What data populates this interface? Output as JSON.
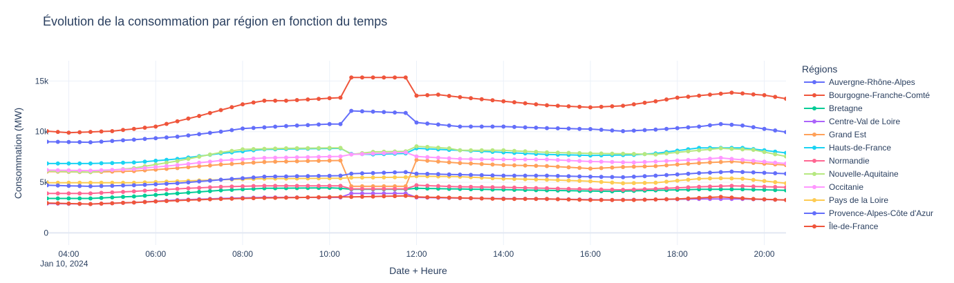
{
  "chart_data": {
    "type": "line",
    "title": "Évolution de la consommation par région en fonction du temps",
    "xlabel": "Date + Heure",
    "ylabel": "Consommation (MW)",
    "legend_title": "Régions",
    "legend_position": "right",
    "date_label": "Jan 10, 2024",
    "x_start": "03:30",
    "x_step_minutes": 15,
    "x_range": [
      "03:30",
      "20:30"
    ],
    "x_ticks": [
      "04:00",
      "06:00",
      "08:00",
      "10:00",
      "12:00",
      "14:00",
      "16:00",
      "18:00",
      "20:00"
    ],
    "ylim": [
      -1200,
      17000
    ],
    "y_ticks": [
      0,
      5000,
      10000,
      15000
    ],
    "y_tick_labels": [
      "0",
      "5k",
      "10k",
      "15k"
    ],
    "series": [
      {
        "name": "Auvergne-Rhône-Alpes",
        "color": "#636efa",
        "points": [
          [
            "03:30",
            9000
          ],
          [
            "04:30",
            8950
          ],
          [
            "05:30",
            9200
          ],
          [
            "06:30",
            9500
          ],
          [
            "07:30",
            10000
          ],
          [
            "08:00",
            10300
          ],
          [
            "09:00",
            10550
          ],
          [
            "10:00",
            10750
          ],
          [
            "10:15",
            10750
          ],
          [
            "10:30",
            12050
          ],
          [
            "11:45",
            11850
          ],
          [
            "12:00",
            10900
          ],
          [
            "13:00",
            10500
          ],
          [
            "14:00",
            10500
          ],
          [
            "15:00",
            10350
          ],
          [
            "16:00",
            10250
          ],
          [
            "16:45",
            10050
          ],
          [
            "17:30",
            10200
          ],
          [
            "18:30",
            10500
          ],
          [
            "19:00",
            10750
          ],
          [
            "19:30",
            10600
          ],
          [
            "20:30",
            9950
          ]
        ]
      },
      {
        "name": "Bourgogne-Franche-Comté",
        "color": "#ef553b",
        "points": [
          [
            "03:30",
            10050
          ],
          [
            "04:00",
            9900
          ],
          [
            "05:00",
            10050
          ],
          [
            "06:00",
            10500
          ],
          [
            "07:00",
            11550
          ],
          [
            "08:00",
            12700
          ],
          [
            "08:30",
            13050
          ],
          [
            "09:00",
            13050
          ],
          [
            "10:00",
            13300
          ],
          [
            "10:15",
            13350
          ],
          [
            "10:30",
            15350
          ],
          [
            "11:45",
            15350
          ],
          [
            "12:00",
            13550
          ],
          [
            "12:30",
            13650
          ],
          [
            "13:00",
            13400
          ],
          [
            "14:00",
            13000
          ],
          [
            "15:00",
            12600
          ],
          [
            "16:00",
            12400
          ],
          [
            "16:45",
            12550
          ],
          [
            "17:30",
            13000
          ],
          [
            "18:00",
            13350
          ],
          [
            "18:30",
            13550
          ],
          [
            "19:15",
            13850
          ],
          [
            "20:00",
            13600
          ],
          [
            "20:30",
            13250
          ]
        ]
      },
      {
        "name": "Bretagne",
        "color": "#00cc96",
        "points": [
          [
            "03:30",
            3400
          ],
          [
            "04:30",
            3400
          ],
          [
            "05:30",
            3600
          ],
          [
            "06:30",
            3900
          ],
          [
            "07:30",
            4200
          ],
          [
            "08:30",
            4400
          ],
          [
            "10:00",
            4450
          ],
          [
            "10:15",
            4400
          ],
          [
            "10:30",
            4300
          ],
          [
            "11:45",
            4300
          ],
          [
            "12:00",
            4400
          ],
          [
            "13:30",
            4300
          ],
          [
            "15:00",
            4200
          ],
          [
            "16:30",
            4100
          ],
          [
            "17:30",
            4200
          ],
          [
            "18:30",
            4300
          ],
          [
            "19:30",
            4300
          ],
          [
            "20:30",
            4200
          ]
        ]
      },
      {
        "name": "Centre-Val de Loire",
        "color": "#ab63fa",
        "points": [
          [
            "03:30",
            2900
          ],
          [
            "04:30",
            2850
          ],
          [
            "05:30",
            3000
          ],
          [
            "06:30",
            3250
          ],
          [
            "07:30",
            3400
          ],
          [
            "08:30",
            3500
          ],
          [
            "10:15",
            3500
          ],
          [
            "10:30",
            3900
          ],
          [
            "11:45",
            3900
          ],
          [
            "12:00",
            3500
          ],
          [
            "13:30",
            3400
          ],
          [
            "15:00",
            3350
          ],
          [
            "16:30",
            3250
          ],
          [
            "17:30",
            3300
          ],
          [
            "18:30",
            3350
          ],
          [
            "19:30",
            3350
          ],
          [
            "20:30",
            3250
          ]
        ]
      },
      {
        "name": "Grand Est",
        "color": "#ffa15a",
        "points": [
          [
            "03:30",
            6050
          ],
          [
            "04:30",
            6000
          ],
          [
            "05:30",
            6100
          ],
          [
            "06:30",
            6400
          ],
          [
            "07:30",
            6750
          ],
          [
            "08:30",
            7000
          ],
          [
            "09:30",
            7100
          ],
          [
            "10:15",
            7150
          ],
          [
            "10:30",
            4600
          ],
          [
            "11:45",
            4600
          ],
          [
            "12:00",
            7200
          ],
          [
            "13:00",
            6900
          ],
          [
            "14:00",
            6700
          ],
          [
            "15:00",
            6600
          ],
          [
            "16:00",
            6350
          ],
          [
            "16:45",
            6500
          ],
          [
            "17:30",
            6600
          ],
          [
            "18:30",
            6900
          ],
          [
            "19:15",
            7050
          ],
          [
            "20:30",
            6700
          ]
        ]
      },
      {
        "name": "Hauts-de-France",
        "color": "#19d3f3",
        "points": [
          [
            "03:30",
            6850
          ],
          [
            "04:30",
            6850
          ],
          [
            "05:30",
            6950
          ],
          [
            "06:30",
            7300
          ],
          [
            "07:30",
            7850
          ],
          [
            "08:30",
            8250
          ],
          [
            "10:15",
            8350
          ],
          [
            "10:30",
            7800
          ],
          [
            "11:00",
            7750
          ],
          [
            "11:45",
            7850
          ],
          [
            "12:00",
            8350
          ],
          [
            "13:00",
            8150
          ],
          [
            "14:00",
            7950
          ],
          [
            "15:00",
            7750
          ],
          [
            "16:00",
            7650
          ],
          [
            "17:00",
            7700
          ],
          [
            "17:30",
            7850
          ],
          [
            "18:30",
            8400
          ],
          [
            "19:30",
            8400
          ],
          [
            "20:30",
            7900
          ]
        ]
      },
      {
        "name": "Normandie",
        "color": "#ff6692",
        "points": [
          [
            "03:30",
            3900
          ],
          [
            "04:30",
            3900
          ],
          [
            "05:30",
            4100
          ],
          [
            "06:30",
            4350
          ],
          [
            "07:30",
            4550
          ],
          [
            "08:30",
            4650
          ],
          [
            "10:15",
            4650
          ],
          [
            "10:30",
            4350
          ],
          [
            "11:45",
            4350
          ],
          [
            "12:00",
            4700
          ],
          [
            "13:00",
            4550
          ],
          [
            "14:00",
            4500
          ],
          [
            "15:00",
            4400
          ],
          [
            "16:00",
            4300
          ],
          [
            "16:45",
            4250
          ],
          [
            "17:30",
            4350
          ],
          [
            "18:30",
            4550
          ],
          [
            "19:15",
            4650
          ],
          [
            "20:30",
            4500
          ]
        ]
      },
      {
        "name": "Nouvelle-Aquitaine",
        "color": "#b6e880",
        "points": [
          [
            "03:30",
            6100
          ],
          [
            "04:30",
            6000
          ],
          [
            "05:30",
            6400
          ],
          [
            "06:30",
            7100
          ],
          [
            "07:30",
            7950
          ],
          [
            "08:00",
            8250
          ],
          [
            "09:00",
            8350
          ],
          [
            "10:15",
            8400
          ],
          [
            "10:30",
            7750
          ],
          [
            "11:00",
            8000
          ],
          [
            "11:45",
            8050
          ],
          [
            "12:00",
            8550
          ],
          [
            "12:45",
            8350
          ],
          [
            "13:00",
            8150
          ],
          [
            "14:00",
            8150
          ],
          [
            "15:00",
            7950
          ],
          [
            "16:00",
            7850
          ],
          [
            "17:00",
            7800
          ],
          [
            "17:30",
            7750
          ],
          [
            "18:30",
            8150
          ],
          [
            "19:00",
            8350
          ],
          [
            "19:45",
            8200
          ],
          [
            "20:30",
            7550
          ]
        ]
      },
      {
        "name": "Occitanie",
        "color": "#ff97ff",
        "points": [
          [
            "03:30",
            6200
          ],
          [
            "04:30",
            6150
          ],
          [
            "05:30",
            6300
          ],
          [
            "06:30",
            6700
          ],
          [
            "07:30",
            7150
          ],
          [
            "08:30",
            7400
          ],
          [
            "10:15",
            7550
          ],
          [
            "10:30",
            7750
          ],
          [
            "11:45",
            7950
          ],
          [
            "12:00",
            7550
          ],
          [
            "13:00",
            7300
          ],
          [
            "14:00",
            7250
          ],
          [
            "15:00",
            7250
          ],
          [
            "16:00",
            7050
          ],
          [
            "17:00",
            6950
          ],
          [
            "18:30",
            7250
          ],
          [
            "19:00",
            7400
          ],
          [
            "20:30",
            6850
          ]
        ]
      },
      {
        "name": "Pays de la Loire",
        "color": "#fecb52",
        "points": [
          [
            "03:30",
            4950
          ],
          [
            "04:30",
            4950
          ],
          [
            "05:30",
            4950
          ],
          [
            "06:30",
            5100
          ],
          [
            "07:30",
            5250
          ],
          [
            "08:30",
            5350
          ],
          [
            "10:15",
            5400
          ],
          [
            "10:30",
            5450
          ],
          [
            "11:45",
            5500
          ],
          [
            "12:00",
            5600
          ],
          [
            "13:00",
            5550
          ],
          [
            "14:00",
            5350
          ],
          [
            "15:00",
            5250
          ],
          [
            "16:00",
            5100
          ],
          [
            "16:45",
            4900
          ],
          [
            "17:30",
            4950
          ],
          [
            "18:30",
            5350
          ],
          [
            "19:00",
            5400
          ],
          [
            "19:30",
            5350
          ],
          [
            "20:30",
            4900
          ]
        ]
      },
      {
        "name": "Provence-Alpes-Côte d'Azur",
        "color": "#636efa",
        "points": [
          [
            "03:30",
            4700
          ],
          [
            "04:30",
            4600
          ],
          [
            "05:30",
            4700
          ],
          [
            "06:30",
            4900
          ],
          [
            "07:30",
            5250
          ],
          [
            "08:30",
            5550
          ],
          [
            "10:15",
            5650
          ],
          [
            "10:30",
            5850
          ],
          [
            "11:45",
            6000
          ],
          [
            "12:00",
            5850
          ],
          [
            "13:00",
            5750
          ],
          [
            "14:00",
            5650
          ],
          [
            "15:00",
            5650
          ],
          [
            "16:00",
            5550
          ],
          [
            "16:45",
            5500
          ],
          [
            "17:30",
            5650
          ],
          [
            "18:30",
            5900
          ],
          [
            "19:15",
            6050
          ],
          [
            "20:30",
            5850
          ]
        ]
      },
      {
        "name": "Île-de-France",
        "color": "#ef553b",
        "points": [
          [
            "03:30",
            2950
          ],
          [
            "04:30",
            2850
          ],
          [
            "05:30",
            3000
          ],
          [
            "06:30",
            3200
          ],
          [
            "07:30",
            3350
          ],
          [
            "08:30",
            3450
          ],
          [
            "10:15",
            3550
          ],
          [
            "10:30",
            3550
          ],
          [
            "11:45",
            3650
          ],
          [
            "12:00",
            3550
          ],
          [
            "13:00",
            3450
          ],
          [
            "14:00",
            3350
          ],
          [
            "15:00",
            3350
          ],
          [
            "16:00",
            3250
          ],
          [
            "17:00",
            3250
          ],
          [
            "18:00",
            3350
          ],
          [
            "19:00",
            3550
          ],
          [
            "19:45",
            3350
          ],
          [
            "20:30",
            3250
          ]
        ]
      }
    ]
  }
}
